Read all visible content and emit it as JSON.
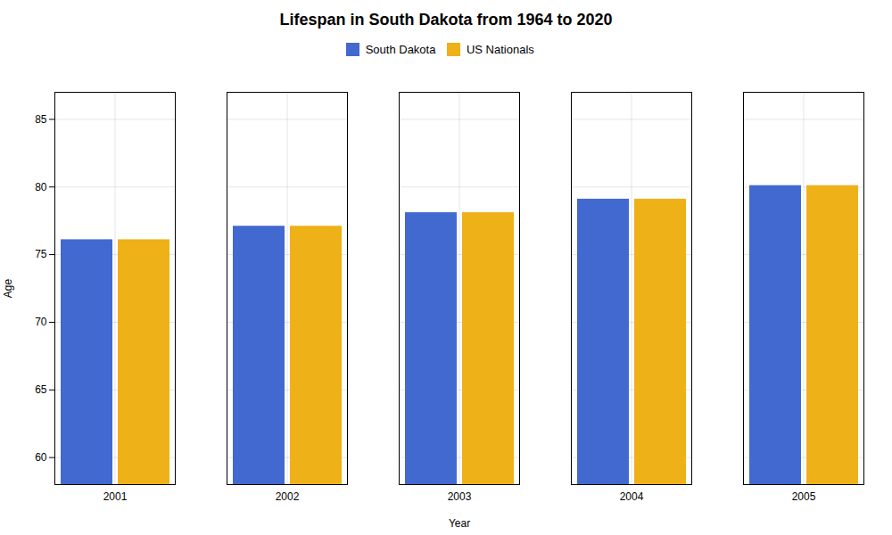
{
  "chart_data": {
    "type": "bar",
    "title": "Lifespan in South Dakota from 1964 to 2020",
    "x_label": "Year",
    "y_label": "Age",
    "categories": [
      2001,
      2002,
      2003,
      2004,
      2005
    ],
    "series": [
      {
        "name": "South Dakota",
        "values": [
          76.1,
          77.1,
          78.1,
          79.1,
          80.1
        ]
      },
      {
        "name": "US Nationals",
        "values": [
          76.1,
          77.1,
          78.1,
          79.1,
          80.1
        ]
      }
    ],
    "ylim": [
      58,
      87
    ],
    "yticks": [
      60,
      65,
      70,
      75,
      80,
      85
    ],
    "grid": true,
    "legend": "top"
  }
}
